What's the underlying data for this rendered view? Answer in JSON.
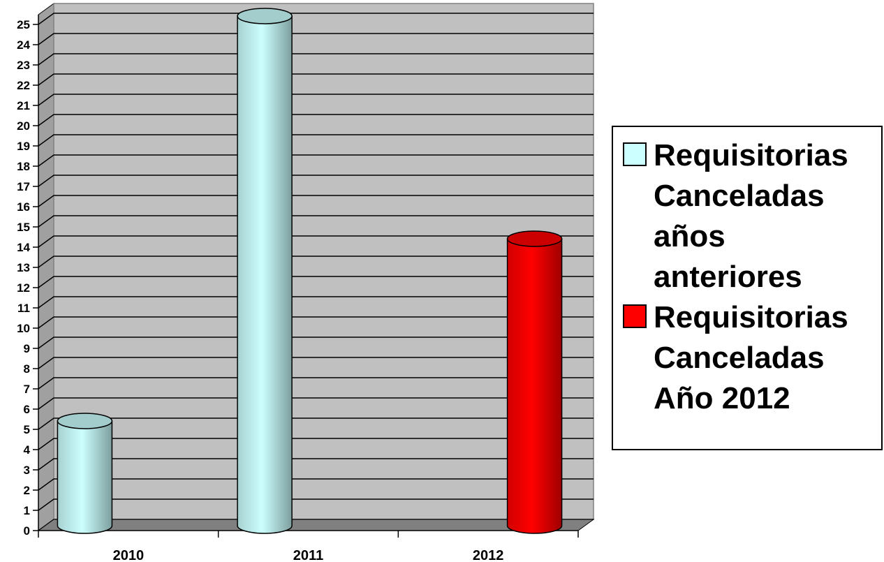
{
  "chart_data": {
    "type": "bar",
    "bar_shape": "cylinder",
    "categories": [
      "2010",
      "2011",
      "2012"
    ],
    "series": [
      {
        "name": "Requisitorias Canceladas años anteriores",
        "values": [
          5,
          25,
          null
        ],
        "color": "#ccffff"
      },
      {
        "name": "Requisitorias Canceladas Año 2012",
        "values": [
          null,
          null,
          14
        ],
        "color": "#ff0000"
      }
    ],
    "title": "",
    "xlabel": "",
    "ylabel": "",
    "ylim": [
      0,
      25
    ],
    "yticks": [
      0,
      1,
      2,
      3,
      4,
      5,
      6,
      7,
      8,
      9,
      10,
      11,
      12,
      13,
      14,
      15,
      16,
      17,
      18,
      19,
      20,
      21,
      22,
      23,
      24,
      25
    ],
    "grid": true,
    "wall_color": "#c0c0c0",
    "floor_color": "#808080",
    "legend_position": "right"
  },
  "legend": {
    "items": [
      {
        "label": "Requisitorias\nCanceladas\naños\nanteriores",
        "color": "#ccffff"
      },
      {
        "label": "Requisitorias\nCanceladas\nAño 2012",
        "color": "#ff0000"
      }
    ]
  }
}
